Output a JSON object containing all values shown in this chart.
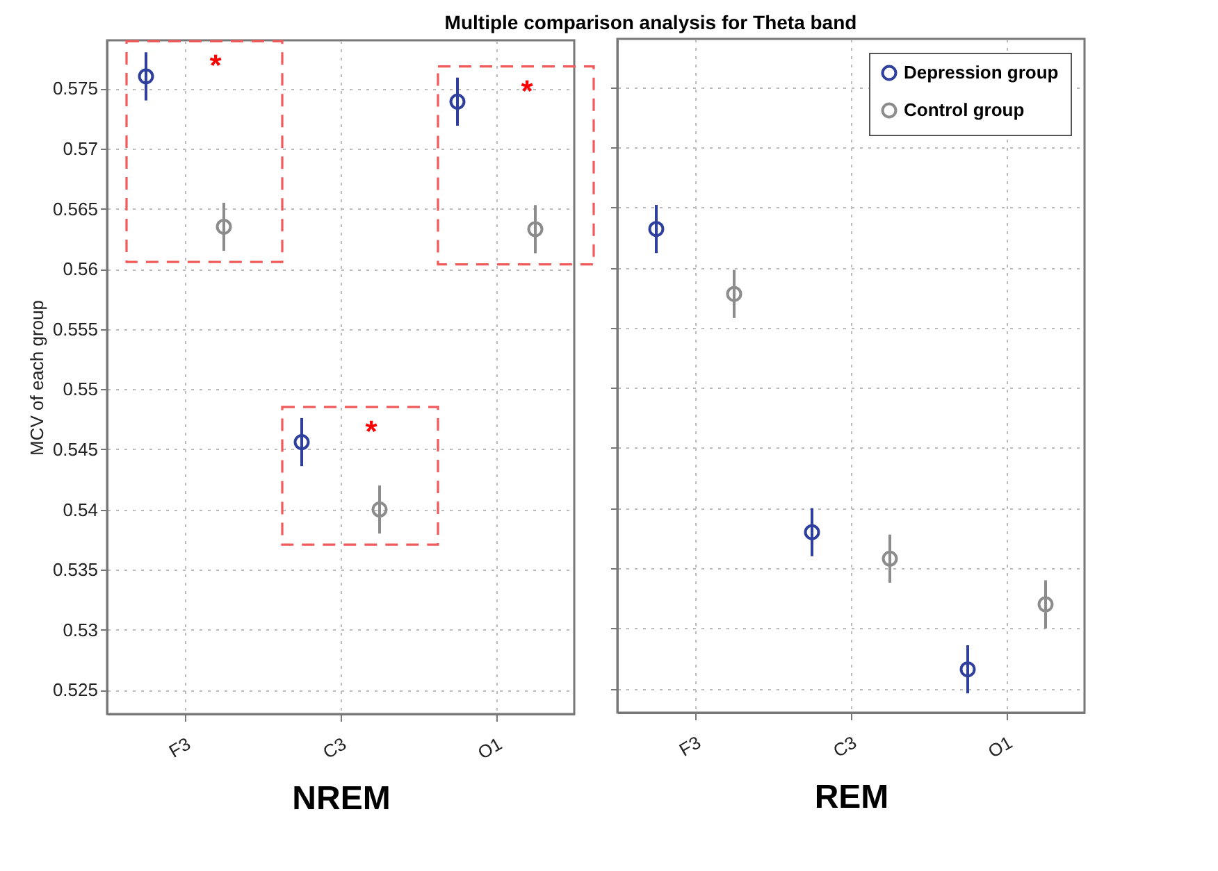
{
  "chart_data": [
    {
      "type": "scatter",
      "title": "Multiple comparison analysis for Theta band",
      "xlabel": "NREM",
      "ylabel": "MCV of each group",
      "categories": [
        "F3",
        "C3",
        "O1"
      ],
      "series": [
        {
          "color": "#2e3f9e",
          "values": [
            0.576,
            0.5456,
            0.5739
          ],
          "errors": [
            0.002,
            0.002,
            0.002
          ]
        },
        {
          "color": "#8c8c8c",
          "values": [
            0.5635,
            0.54,
            0.5633
          ],
          "errors": [
            0.002,
            0.002,
            0.002
          ]
        }
      ],
      "annotations": [
        "*",
        "*",
        "*"
      ],
      "ylim": [
        0.523,
        0.579
      ],
      "yticks": [
        0.525,
        0.53,
        0.535,
        0.54,
        0.545,
        0.55,
        0.555,
        0.56,
        0.565,
        0.57,
        0.575
      ],
      "grid": true,
      "marker": "circle"
    },
    {
      "type": "scatter",
      "xlabel": "REM",
      "categories": [
        "F3",
        "C3",
        "O1"
      ],
      "series": [
        {
          "name": "Depression group",
          "color": "#2e3f9e",
          "values": [
            0.5632,
            0.538,
            0.5266
          ],
          "errors": [
            0.002,
            0.002,
            0.002
          ]
        },
        {
          "name": "Control group",
          "color": "#8c8c8c",
          "values": [
            0.5578,
            0.5358,
            0.532
          ],
          "errors": [
            0.002,
            0.002,
            0.002
          ]
        }
      ],
      "ylim": [
        0.523,
        0.579
      ],
      "yticks": [
        0.525,
        0.53,
        0.535,
        0.54,
        0.545,
        0.55,
        0.555,
        0.56,
        0.565,
        0.57,
        0.575
      ],
      "grid": true,
      "marker": "circle",
      "legend": "top right",
      "tick_labels": "x"
    }
  ]
}
